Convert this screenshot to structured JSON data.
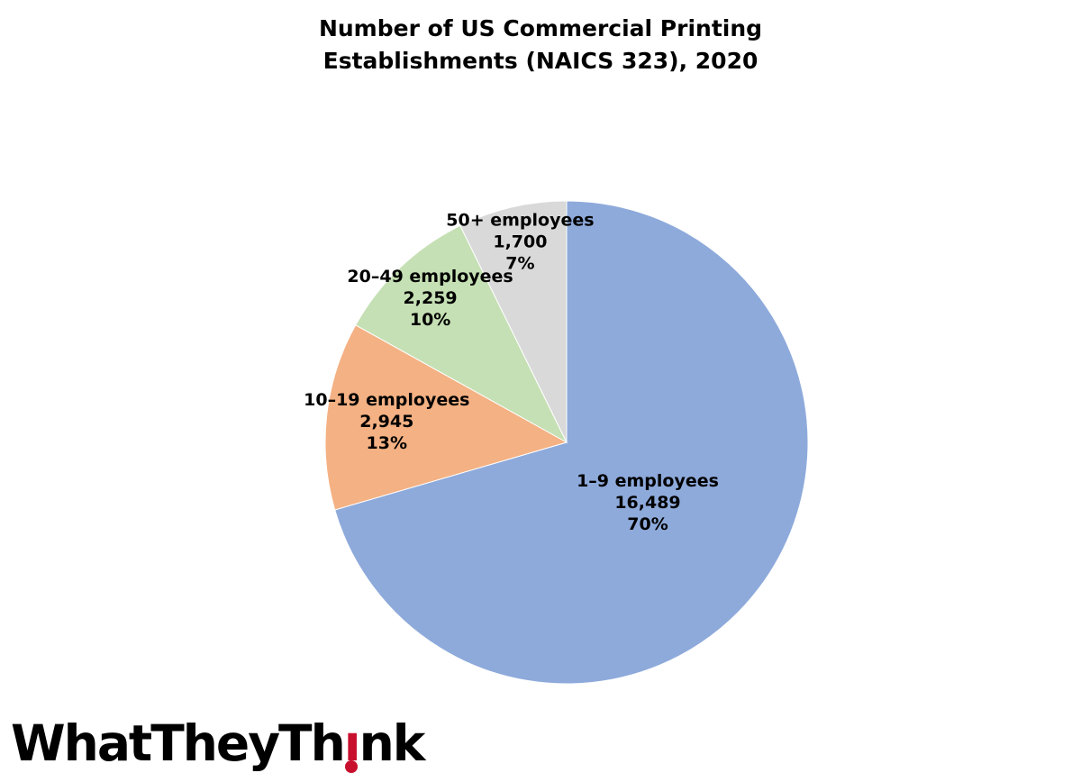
{
  "chart_data": {
    "type": "pie",
    "title": [
      "Number of US Commercial Printing",
      "Establishments (NAICS 323), 2020"
    ],
    "slices": [
      {
        "label": "1–9 employees",
        "value": 16489,
        "percent": "70%",
        "display_value": "16,489",
        "color": "#8eaadb"
      },
      {
        "label": "10–19 employees",
        "value": 2945,
        "percent": "13%",
        "display_value": "2,945",
        "color": "#f4b183"
      },
      {
        "label": "20–49 employees",
        "value": 2259,
        "percent": "10%",
        "display_value": "2,259",
        "color": "#c5e0b4"
      },
      {
        "label": "50+ employees",
        "value": 1700,
        "percent": "7%",
        "display_value": "1,700",
        "color": "#d9d9d9"
      }
    ],
    "start": "12 o'clock",
    "direction": "clockwise"
  },
  "logo": {
    "text_before": "WhatTheyTh",
    "text_after": "nk",
    "accent_color": "#c8102e"
  }
}
